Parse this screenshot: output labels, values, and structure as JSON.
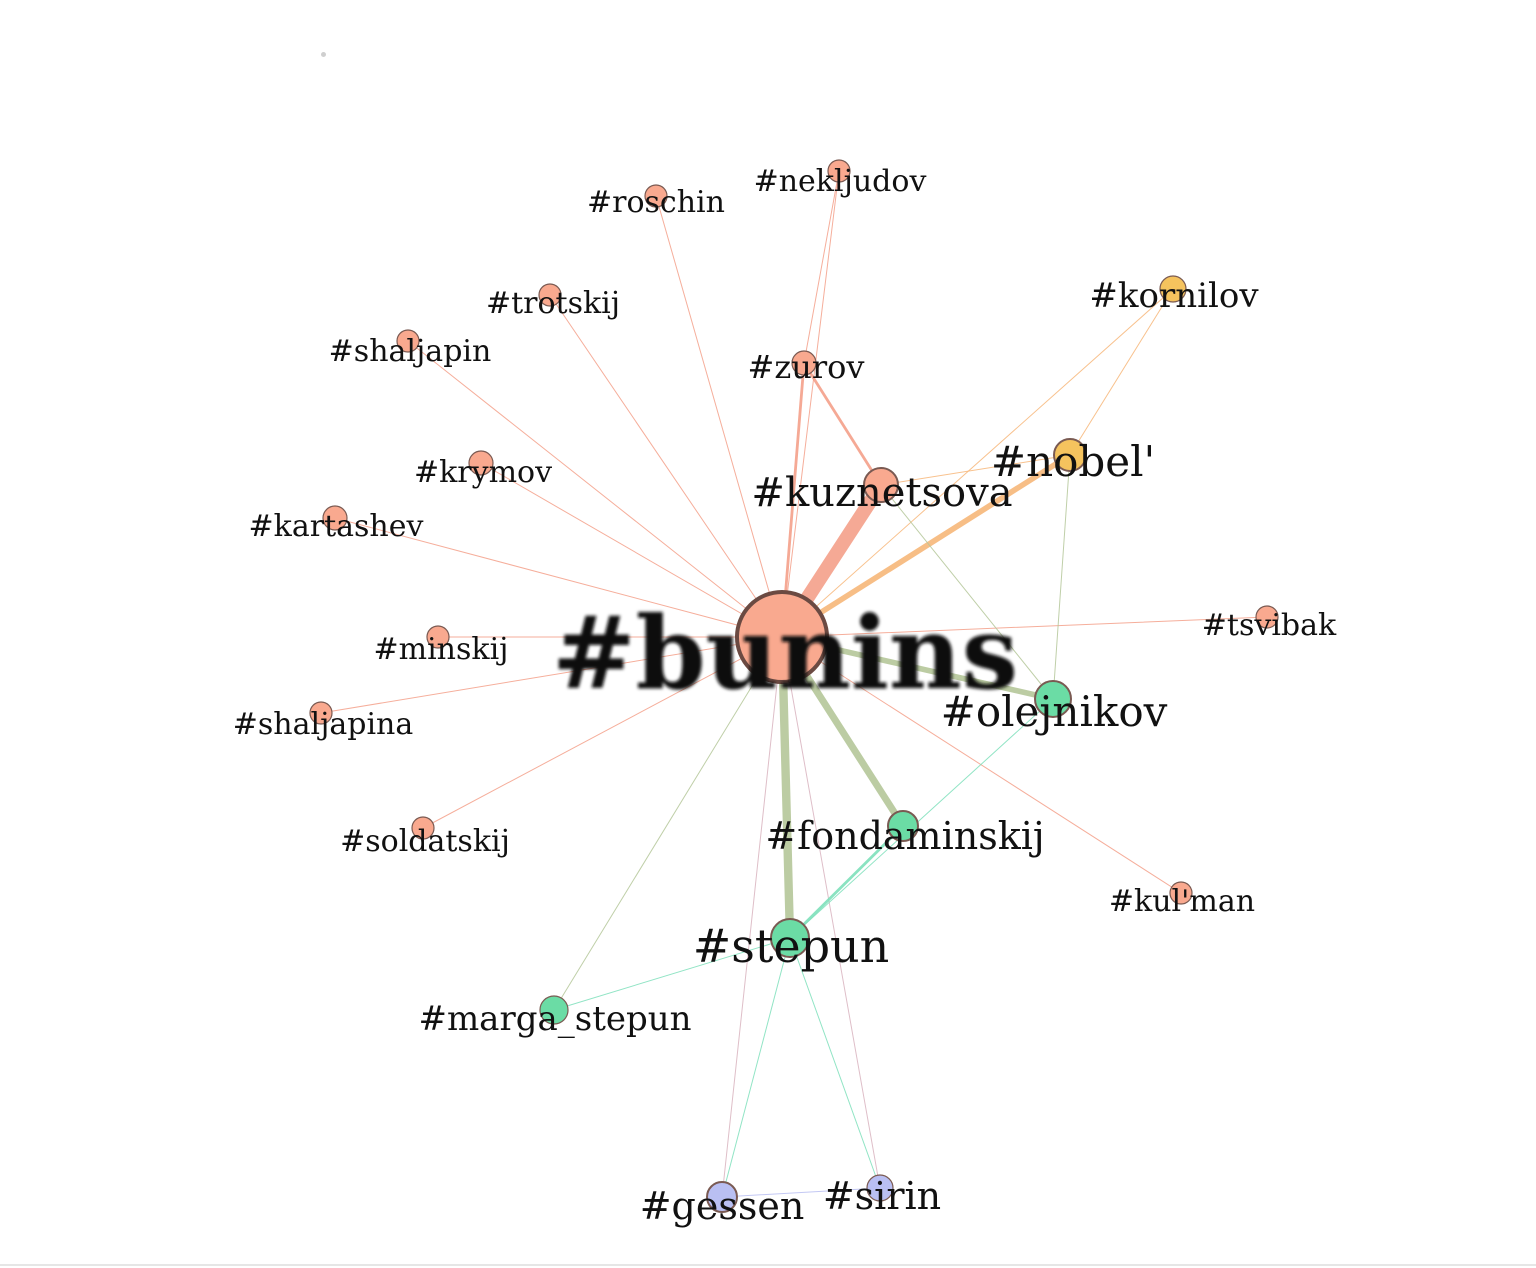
{
  "graph": {
    "groups": {
      "salmon": "#f9a98f",
      "gold": "#f5c35e",
      "green": "#6bdca5",
      "lavender": "#b9bff2"
    },
    "nodes": [
      {
        "id": "bunins",
        "label": "#bunins",
        "group": "salmon"
      },
      {
        "id": "kuznetsova",
        "label": "#kuznetsova",
        "group": "salmon"
      },
      {
        "id": "nobel",
        "label": "#nobel'",
        "group": "gold"
      },
      {
        "id": "kornilov",
        "label": "#kornilov",
        "group": "gold"
      },
      {
        "id": "olejnikov",
        "label": "#olejnikov",
        "group": "green"
      },
      {
        "id": "fondaminskij",
        "label": "#fondaminskij",
        "group": "green"
      },
      {
        "id": "stepun",
        "label": "#stepun",
        "group": "green"
      },
      {
        "id": "marga_stepun",
        "label": "#marga_stepun",
        "group": "green"
      },
      {
        "id": "gessen",
        "label": "#gessen",
        "group": "lavender"
      },
      {
        "id": "sirin",
        "label": "#sirin",
        "group": "lavender"
      },
      {
        "id": "zurov",
        "label": "#zurov",
        "group": "salmon"
      },
      {
        "id": "nekljudov",
        "label": "#nekljudov",
        "group": "salmon"
      },
      {
        "id": "roschin",
        "label": "#roschin",
        "group": "salmon"
      },
      {
        "id": "trotskij",
        "label": "#trotskij",
        "group": "salmon"
      },
      {
        "id": "shaljapin",
        "label": "#shaljapin",
        "group": "salmon"
      },
      {
        "id": "krymov",
        "label": "#krymov",
        "group": "salmon"
      },
      {
        "id": "kartashev",
        "label": "#kartashev",
        "group": "salmon"
      },
      {
        "id": "minskij",
        "label": "#minskij",
        "group": "salmon"
      },
      {
        "id": "shaljapina",
        "label": "#shaljapina",
        "group": "salmon"
      },
      {
        "id": "soldatskij",
        "label": "#soldatskij",
        "group": "salmon"
      },
      {
        "id": "tsvibak",
        "label": "#tsvibak",
        "group": "salmon"
      },
      {
        "id": "kulman",
        "label": "#kul'man",
        "group": "salmon"
      }
    ],
    "edges": [
      {
        "source": "bunins",
        "target": "kuznetsova",
        "weight": 10,
        "color": "salmon"
      },
      {
        "source": "bunins",
        "target": "nobel",
        "weight": 4,
        "color": "gold"
      },
      {
        "source": "bunins",
        "target": "olejnikov",
        "weight": 4,
        "color": "olive"
      },
      {
        "source": "bunins",
        "target": "fondaminskij",
        "weight": 5,
        "color": "olive"
      },
      {
        "source": "bunins",
        "target": "stepun",
        "weight": 6,
        "color": "olive"
      },
      {
        "source": "bunins",
        "target": "zurov",
        "weight": 2,
        "color": "salmon"
      },
      {
        "source": "bunins",
        "target": "nekljudov",
        "weight": 1,
        "color": "salmon"
      },
      {
        "source": "bunins",
        "target": "roschin",
        "weight": 1,
        "color": "salmon"
      },
      {
        "source": "bunins",
        "target": "trotskij",
        "weight": 1,
        "color": "salmon"
      },
      {
        "source": "bunins",
        "target": "shaljapin",
        "weight": 1,
        "color": "salmon"
      },
      {
        "source": "bunins",
        "target": "krymov",
        "weight": 1,
        "color": "salmon"
      },
      {
        "source": "bunins",
        "target": "kartashev",
        "weight": 1,
        "color": "salmon"
      },
      {
        "source": "bunins",
        "target": "minskij",
        "weight": 1,
        "color": "salmon"
      },
      {
        "source": "bunins",
        "target": "shaljapina",
        "weight": 1,
        "color": "salmon"
      },
      {
        "source": "bunins",
        "target": "soldatskij",
        "weight": 1,
        "color": "salmon"
      },
      {
        "source": "bunins",
        "target": "tsvibak",
        "weight": 1,
        "color": "salmon"
      },
      {
        "source": "bunins",
        "target": "kulman",
        "weight": 1,
        "color": "salmon"
      },
      {
        "source": "bunins",
        "target": "kornilov",
        "weight": 1,
        "color": "gold"
      },
      {
        "source": "bunins",
        "target": "marga_stepun",
        "weight": 1,
        "color": "olive"
      },
      {
        "source": "bunins",
        "target": "gessen",
        "weight": 1,
        "color": "mauve"
      },
      {
        "source": "bunins",
        "target": "sirin",
        "weight": 1,
        "color": "mauve"
      },
      {
        "source": "kuznetsova",
        "target": "zurov",
        "weight": 2,
        "color": "salmon"
      },
      {
        "source": "kuznetsova",
        "target": "nobel",
        "weight": 1,
        "color": "gold"
      },
      {
        "source": "kuznetsova",
        "target": "olejnikov",
        "weight": 1,
        "color": "olive"
      },
      {
        "source": "nobel",
        "target": "kornilov",
        "weight": 1,
        "color": "gold"
      },
      {
        "source": "nobel",
        "target": "olejnikov",
        "weight": 1,
        "color": "olive"
      },
      {
        "source": "olejnikov",
        "target": "stepun",
        "weight": 1,
        "color": "green"
      },
      {
        "source": "fondaminskij",
        "target": "stepun",
        "weight": 2,
        "color": "green"
      },
      {
        "source": "stepun",
        "target": "marga_stepun",
        "weight": 1,
        "color": "green"
      },
      {
        "source": "stepun",
        "target": "gessen",
        "weight": 1,
        "color": "green"
      },
      {
        "source": "stepun",
        "target": "sirin",
        "weight": 1,
        "color": "green"
      },
      {
        "source": "gessen",
        "target": "sirin",
        "weight": 1,
        "color": "lavender"
      },
      {
        "source": "zurov",
        "target": "nekljudov",
        "weight": 1,
        "color": "salmon"
      }
    ],
    "edge_colors": {
      "salmon": "#f4a08a",
      "gold": "#f7b77a",
      "olive": "#b5c79a",
      "green": "#7ee0bb",
      "mauve": "#d9b3bf",
      "lavender": "#b9bff2"
    }
  }
}
